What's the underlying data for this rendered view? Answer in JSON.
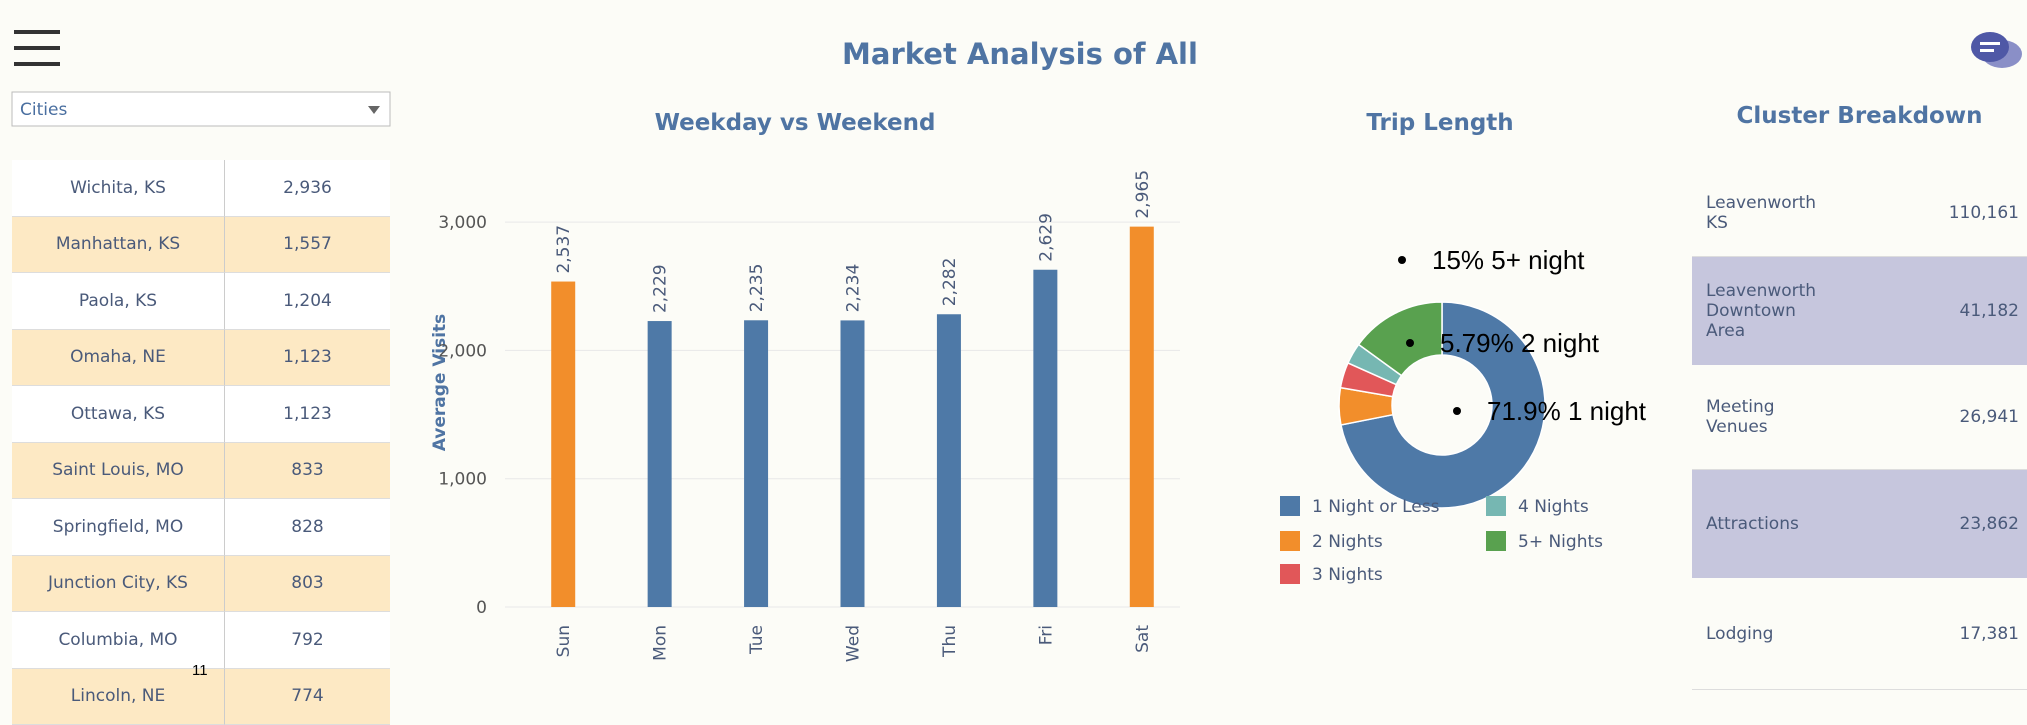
{
  "header": {
    "title": "Market Analysis of All"
  },
  "cities": {
    "dropdown": "Cities",
    "rows": [
      [
        "Wichita, KS",
        "2,936"
      ],
      [
        "Manhattan, KS",
        "1,557"
      ],
      [
        "Paola, KS",
        "1,204"
      ],
      [
        "Omaha, NE",
        "1,123"
      ],
      [
        "Ottawa, KS",
        "1,123"
      ],
      [
        "Saint Louis, MO",
        "833"
      ],
      [
        "Springfield, MO",
        "828"
      ],
      [
        "Junction City, KS",
        "803"
      ],
      [
        "Columbia, MO",
        "792"
      ],
      [
        "Lincoln, NE",
        "774"
      ]
    ]
  },
  "page_number": "11",
  "chart_data": [
    {
      "type": "bar",
      "title": "Weekday vs Weekend",
      "y_label": "Average Visits",
      "categories": [
        "Sun",
        "Mon",
        "Tue",
        "Wed",
        "Thu",
        "Fri",
        "Sat"
      ],
      "values": [
        2537,
        2229,
        2235,
        2234,
        2282,
        2629,
        2965
      ],
      "value_labels": [
        "2,537",
        "2,229",
        "2,235",
        "2,234",
        "2,282",
        "2,629",
        "2,965"
      ],
      "colors": [
        "#f28e2b",
        "#4e79a7",
        "#4e79a7",
        "#4e79a7",
        "#4e79a7",
        "#4e79a7",
        "#f28e2b"
      ],
      "ylim": [
        0,
        3500
      ],
      "yticks": [
        0,
        {
          "value": 1000,
          "label": "1,000"
        },
        {
          "value": 2000,
          "label": "2,000"
        },
        {
          "value": 3000,
          "label": "3,000"
        }
      ],
      "grid": true
    },
    {
      "type": "pie",
      "title": "Trip Length",
      "categories": [
        "1 Night or Less",
        "2 Nights",
        "3 Nights",
        "4 Nights",
        "5+ Nights"
      ],
      "values": [
        71.9,
        5.79,
        4.0,
        3.31,
        15
      ],
      "colors": [
        "#4e79a7",
        "#f28e2b",
        "#e15759",
        "#76b7b2",
        "#59a14f"
      ],
      "annotations": [
        "15% 5+ night",
        "5.79% 2 night",
        "71.9% 1 night"
      ]
    }
  ],
  "clusters": {
    "title": "Cluster Breakdown",
    "rows": [
      [
        "Leavenworth KS",
        "110,161"
      ],
      [
        "Leavenworth Downtown Area",
        "41,182"
      ],
      [
        "Meeting Venues",
        "26,941"
      ],
      [
        "Attractions",
        "23,862"
      ],
      [
        "Lodging",
        "17,381"
      ]
    ]
  }
}
